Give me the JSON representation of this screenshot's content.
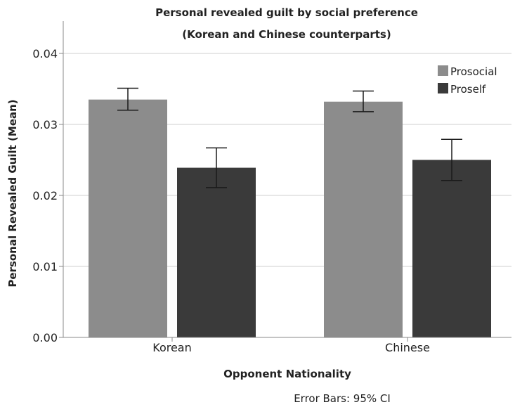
{
  "chart_data": {
    "type": "bar",
    "title": "Personal revealed guilt by social preference",
    "subtitle": "(Korean and Chinese counterparts)",
    "xlabel": "Opponent Nationality",
    "ylabel": "Personal Revealed Guilt (Mean)",
    "ylim": [
      0,
      0.04
    ],
    "yticks": [
      "0.00",
      "0.01",
      "0.02",
      "0.03",
      "0.04"
    ],
    "ytick_values": [
      0,
      0.01,
      0.02,
      0.03,
      0.04
    ],
    "grid": true,
    "legend_position": "top-right",
    "categories": [
      "Korean",
      "Chinese"
    ],
    "series": [
      {
        "name": "Prosocial",
        "color": "#8c8c8c",
        "values": [
          0.0335,
          0.0332
        ],
        "ci_low": [
          0.032,
          0.0318
        ],
        "ci_high": [
          0.0351,
          0.0347
        ]
      },
      {
        "name": "Proself",
        "color": "#3a3a3a",
        "values": [
          0.0239,
          0.025
        ],
        "ci_low": [
          0.0211,
          0.0221
        ],
        "ci_high": [
          0.0267,
          0.0279
        ]
      }
    ],
    "footnote": "Error Bars: 95% CI"
  }
}
